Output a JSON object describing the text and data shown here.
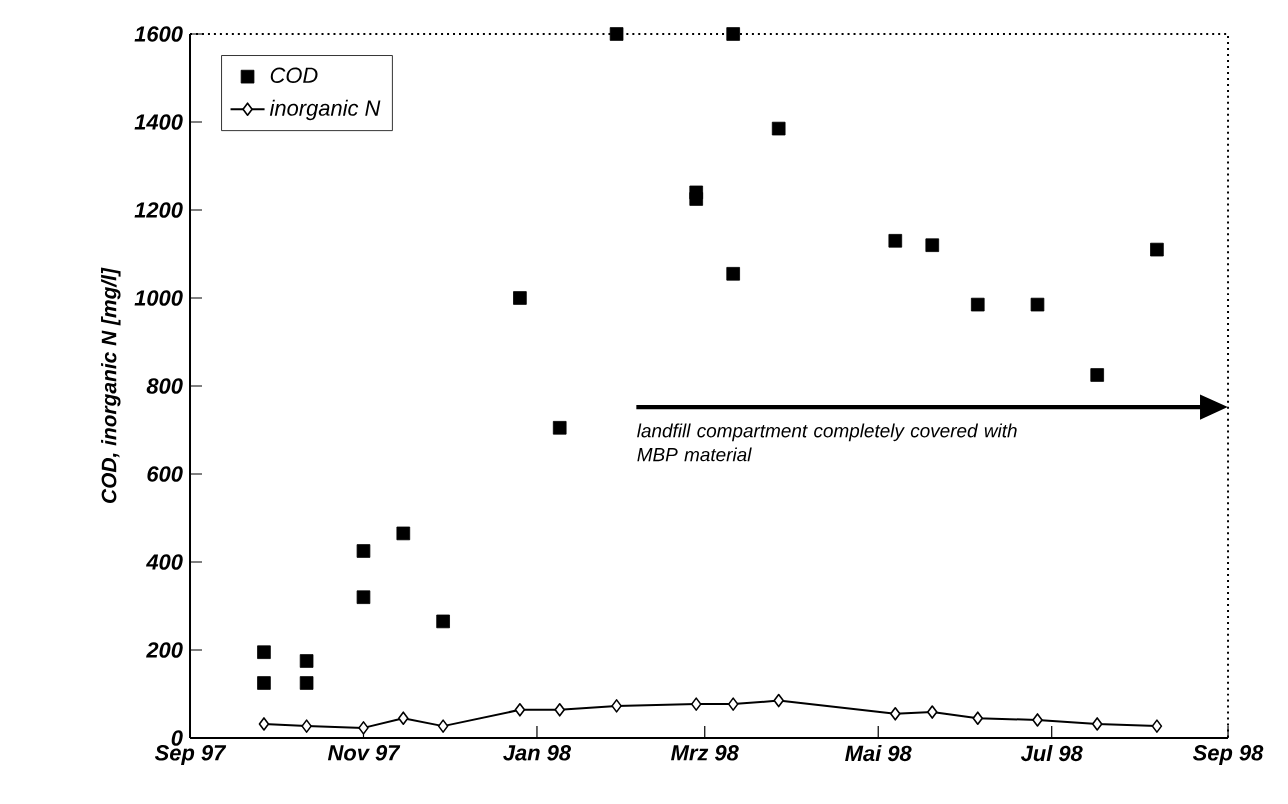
{
  "chart_data": {
    "type": "scatter",
    "ylabel": "COD, inorganic N [mg/l]",
    "xlim": [
      "1997-09-01",
      "1998-09-01"
    ],
    "xticks": [
      {
        "value": "1997-09-01",
        "label": "Sep 97"
      },
      {
        "value": "1997-11-01",
        "label": "Nov 97"
      },
      {
        "value": "1998-01-01",
        "label": "Jan 98"
      },
      {
        "value": "1998-03-01",
        "label": "Mrz 98"
      },
      {
        "value": "1998-05-01",
        "label": "Mai 98"
      },
      {
        "value": "1998-07-01",
        "label": "Jul 98"
      },
      {
        "value": "1998-09-01",
        "label": "Sep 98"
      }
    ],
    "ylim": [
      0,
      1600
    ],
    "yticks": [
      0,
      200,
      400,
      600,
      800,
      1000,
      1200,
      1400,
      1600
    ],
    "series": [
      {
        "name": "COD",
        "marker": "square",
        "color": "#000000",
        "x": [
          "1997-09-27",
          "1997-09-27",
          "1997-10-12",
          "1997-10-12",
          "1997-11-01",
          "1997-11-01",
          "1997-11-15",
          "1997-11-29",
          "1997-12-26",
          "1998-01-09",
          "1998-01-29",
          "1998-02-26",
          "1998-02-26",
          "1998-03-11",
          "1998-03-11",
          "1998-03-27",
          "1998-05-07",
          "1998-05-20",
          "1998-06-05",
          "1998-06-26",
          "1998-07-17",
          "1998-08-07"
        ],
        "values": [
          195,
          125,
          175,
          125,
          425,
          320,
          465,
          265,
          1000,
          705,
          1600,
          1225,
          1240,
          1600,
          1055,
          1385,
          1130,
          1120,
          985,
          985,
          825,
          1110
        ]
      },
      {
        "name": "inorganic N",
        "type": "line",
        "marker": "diamond",
        "line_style": "solid",
        "color": "#000000",
        "x": [
          "1997-09-27",
          "1997-10-12",
          "1997-11-01",
          "1997-11-15",
          "1997-11-29",
          "1997-12-26",
          "1998-01-09",
          "1998-01-29",
          "1998-02-26",
          "1998-03-11",
          "1998-03-27",
          "1998-05-07",
          "1998-05-20",
          "1998-06-05",
          "1998-06-26",
          "1998-07-17",
          "1998-08-07"
        ],
        "values": [
          32,
          27,
          23,
          45,
          27,
          64,
          64,
          73,
          77,
          77,
          85,
          55,
          59,
          45,
          41,
          32,
          27
        ]
      }
    ],
    "annotations": [
      "landfill compartment completely covered with MBP material"
    ],
    "legend": "top left",
    "grid": false
  }
}
